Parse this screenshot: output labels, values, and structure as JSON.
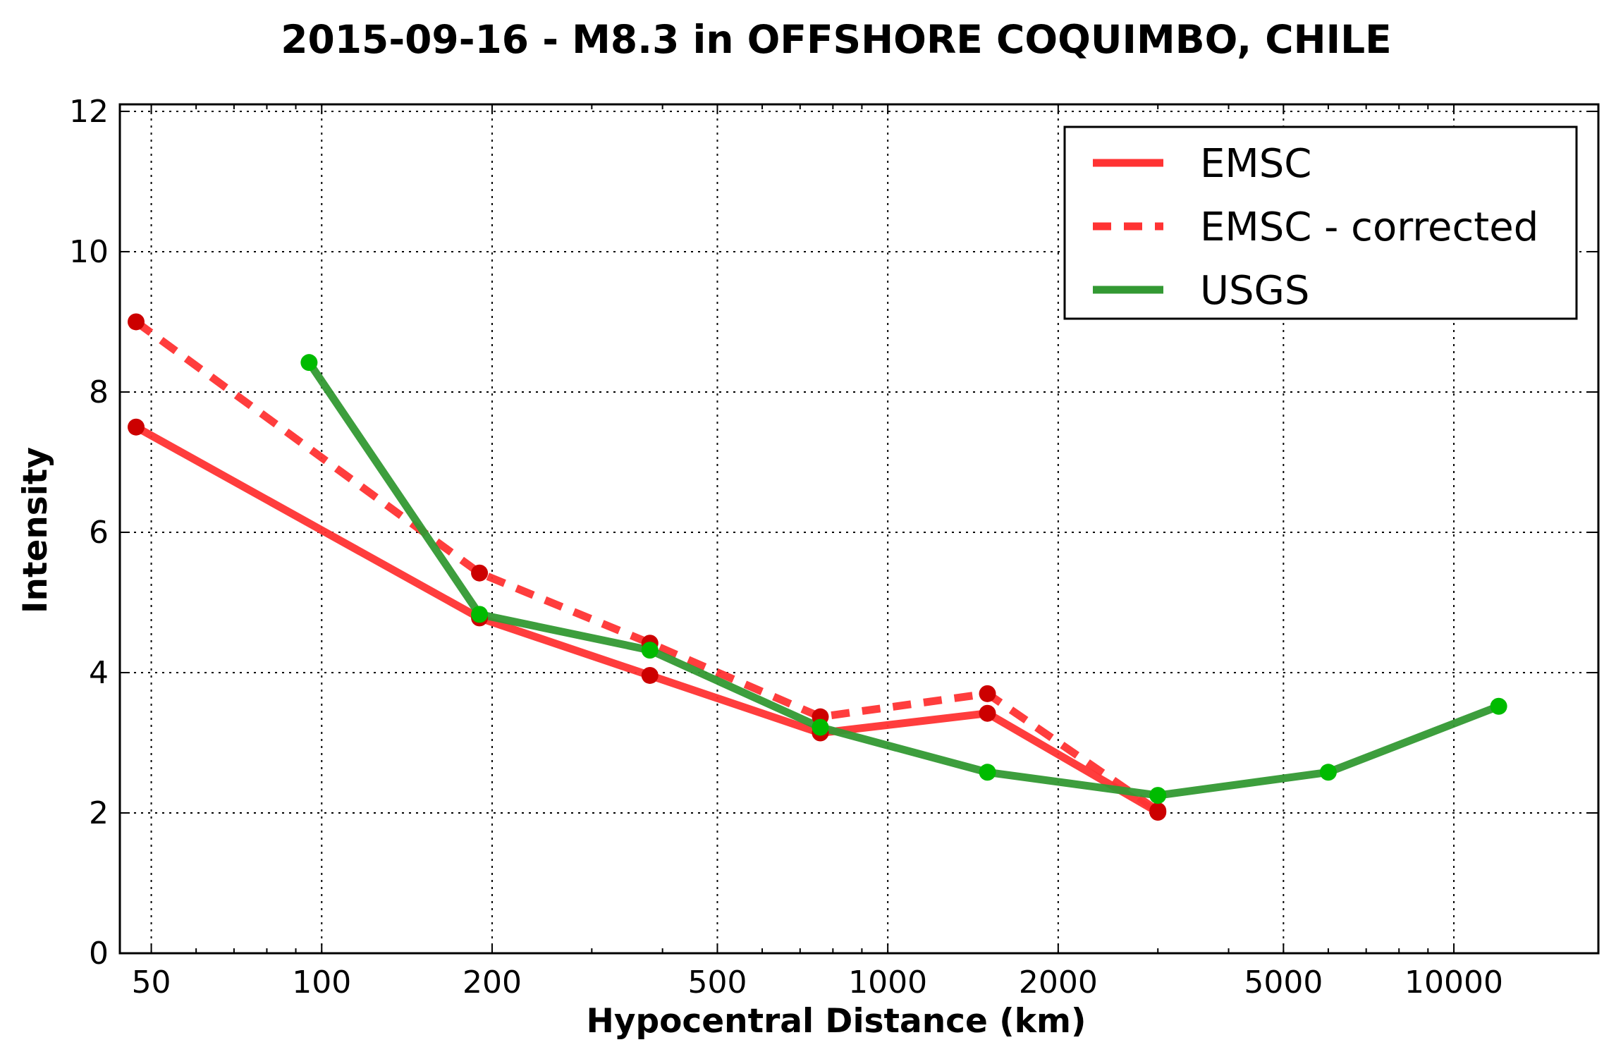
{
  "chart_data": {
    "type": "line",
    "title": "2015-09-16 - M8.3 in OFFSHORE COQUIMBO, CHILE",
    "xlabel": "Hypocentral Distance (km)",
    "ylabel": "Intensity",
    "x_scale": "log",
    "xlim": [
      44,
      18000
    ],
    "ylim": [
      0,
      12.1
    ],
    "x_ticks": [
      50,
      100,
      200,
      500,
      1000,
      2000,
      5000,
      10000
    ],
    "x_tick_labels": [
      "50",
      "100",
      "200",
      "500",
      "1000",
      "2000",
      "5000",
      "10000"
    ],
    "y_ticks": [
      0,
      2,
      4,
      6,
      8,
      10,
      12
    ],
    "y_tick_labels": [
      "0",
      "2",
      "4",
      "6",
      "8",
      "10",
      "12"
    ],
    "grid": true,
    "legend_position": "top-right",
    "series": [
      {
        "name": "EMSC",
        "color": "#ff3333",
        "marker_color": "#cc0000",
        "style": "solid",
        "x": [
          47,
          190,
          380,
          760,
          1500,
          3000
        ],
        "y": [
          7.5,
          4.78,
          3.96,
          3.14,
          3.42,
          2.01
        ]
      },
      {
        "name": "EMSC - corrected",
        "color": "#ff3333",
        "marker_color": "#cc0000",
        "style": "dashed",
        "x": [
          47,
          190,
          380,
          760,
          1500,
          3000
        ],
        "y": [
          9.0,
          5.42,
          4.42,
          3.37,
          3.7,
          2.03
        ]
      },
      {
        "name": "USGS",
        "color": "#339933",
        "marker_color": "#00bb00",
        "style": "solid",
        "x": [
          95,
          190,
          380,
          760,
          1500,
          3000,
          6000,
          12000
        ],
        "y": [
          8.42,
          4.83,
          4.32,
          3.22,
          2.58,
          2.25,
          2.58,
          3.52
        ]
      }
    ]
  }
}
